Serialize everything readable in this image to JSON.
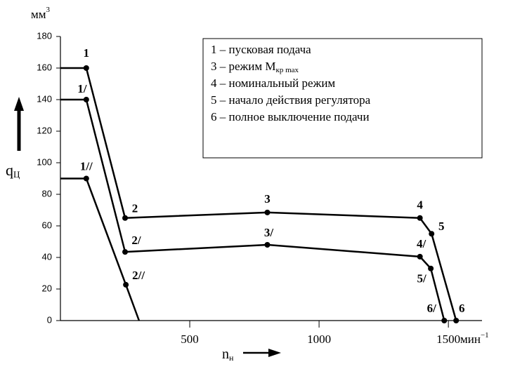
{
  "chart_data": {
    "type": "line",
    "y_unit": "мм",
    "y_unit_sup": "3",
    "y_label": "q",
    "y_label_sub": "Ц",
    "x_label": "n",
    "x_label_sub": "н",
    "x_unit": "мин",
    "x_unit_sup": "−1",
    "xlim": [
      0,
      1630
    ],
    "ylim": [
      0,
      180
    ],
    "xticks": [
      500,
      1000,
      1500
    ],
    "yticks": [
      0,
      20,
      40,
      60,
      80,
      100,
      120,
      140,
      160,
      180
    ],
    "color": "#000000",
    "series": [
      {
        "x": [
          0,
          100,
          250,
          800,
          1390,
          1435,
          1530
        ],
        "values": [
          160,
          160,
          65,
          68.5,
          65,
          55,
          0
        ],
        "point_labels": [
          null,
          "1",
          "2",
          "3",
          "4",
          "5",
          "6"
        ]
      },
      {
        "x": [
          0,
          100,
          250,
          800,
          1390,
          1432,
          1484
        ],
        "values": [
          140,
          140,
          43.5,
          48,
          40.5,
          33,
          0
        ],
        "point_labels": [
          null,
          "1/",
          "2/",
          "3/",
          "4/",
          "5/",
          "6/"
        ]
      },
      {
        "x": [
          0,
          100,
          253,
          304
        ],
        "values": [
          90,
          90,
          22.7,
          0
        ],
        "point_labels": [
          null,
          "1//",
          "2//",
          null
        ]
      }
    ],
    "legend": [
      {
        "text": "1 – пусковая подача"
      },
      {
        "text": "3 – режим M",
        "sub": "кр max"
      },
      {
        "text": "4 – номинальный режим"
      },
      {
        "text": "5 – начало действия регулятора"
      },
      {
        "text": "6 – полное выключение подачи"
      }
    ]
  }
}
